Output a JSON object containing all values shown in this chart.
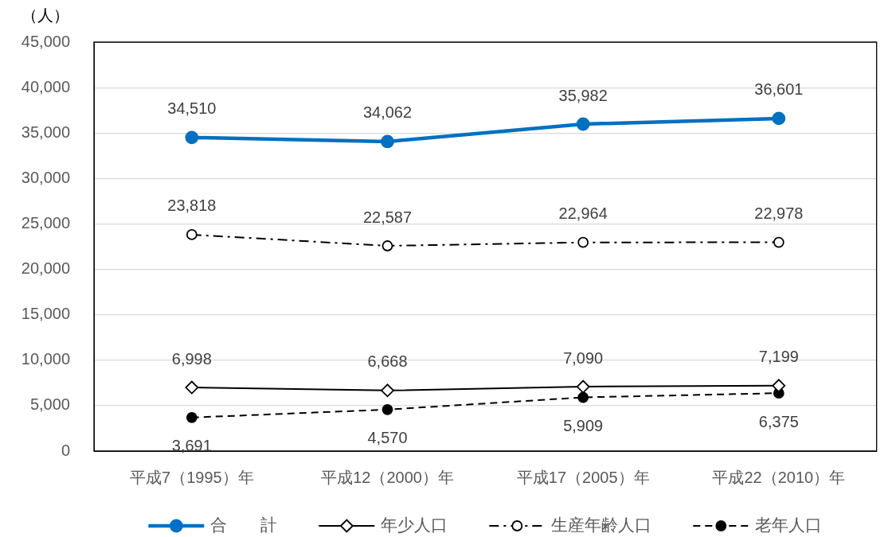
{
  "chart_data": {
    "type": "line",
    "ylabel": "（人）",
    "categories": [
      "平成7（1995）年",
      "平成12（2000）年",
      "平成17（2005）年",
      "平成22（2010）年"
    ],
    "series": [
      {
        "name": "合　　計",
        "color": "#0070c0",
        "values": [
          34510,
          34062,
          35982,
          36601
        ],
        "marker": "circle",
        "line_style": "solid",
        "value_labels": [
          "34,510",
          "34,062",
          "35,982",
          "36,601"
        ]
      },
      {
        "name": "年少人口",
        "color": "#000000",
        "values": [
          6998,
          6668,
          7090,
          7199
        ],
        "marker": "diamond",
        "line_style": "solid",
        "value_labels": [
          "6,998",
          "6,668",
          "7,090",
          "7,199"
        ]
      },
      {
        "name": "生産年齢人口",
        "color": "#000000",
        "values": [
          23818,
          22587,
          22964,
          22978
        ],
        "marker": "circle",
        "line_style": "dashdot",
        "value_labels": [
          "23,818",
          "22,587",
          "22,964",
          "22,978"
        ]
      },
      {
        "name": "老年人口",
        "color": "#000000",
        "values": [
          3691,
          4570,
          5909,
          6375
        ],
        "marker": "circle",
        "line_style": "dashed",
        "value_labels": [
          "3,691",
          "4,570",
          "5,909",
          "6,375"
        ]
      }
    ],
    "ylim": [
      0,
      45000
    ],
    "yticks": [
      {
        "value": 0,
        "label": "0"
      },
      {
        "value": 5000,
        "label": "5,000"
      },
      {
        "value": 10000,
        "label": "10,000"
      },
      {
        "value": 15000,
        "label": "15,000"
      },
      {
        "value": 20000,
        "label": "20,000"
      },
      {
        "value": 25000,
        "label": "25,000"
      },
      {
        "value": 30000,
        "label": "30,000"
      },
      {
        "value": 35000,
        "label": "35,000"
      },
      {
        "value": 40000,
        "label": "40,000"
      },
      {
        "value": 45000,
        "label": "45,000"
      }
    ],
    "grid": "y",
    "legend": "bottom"
  }
}
